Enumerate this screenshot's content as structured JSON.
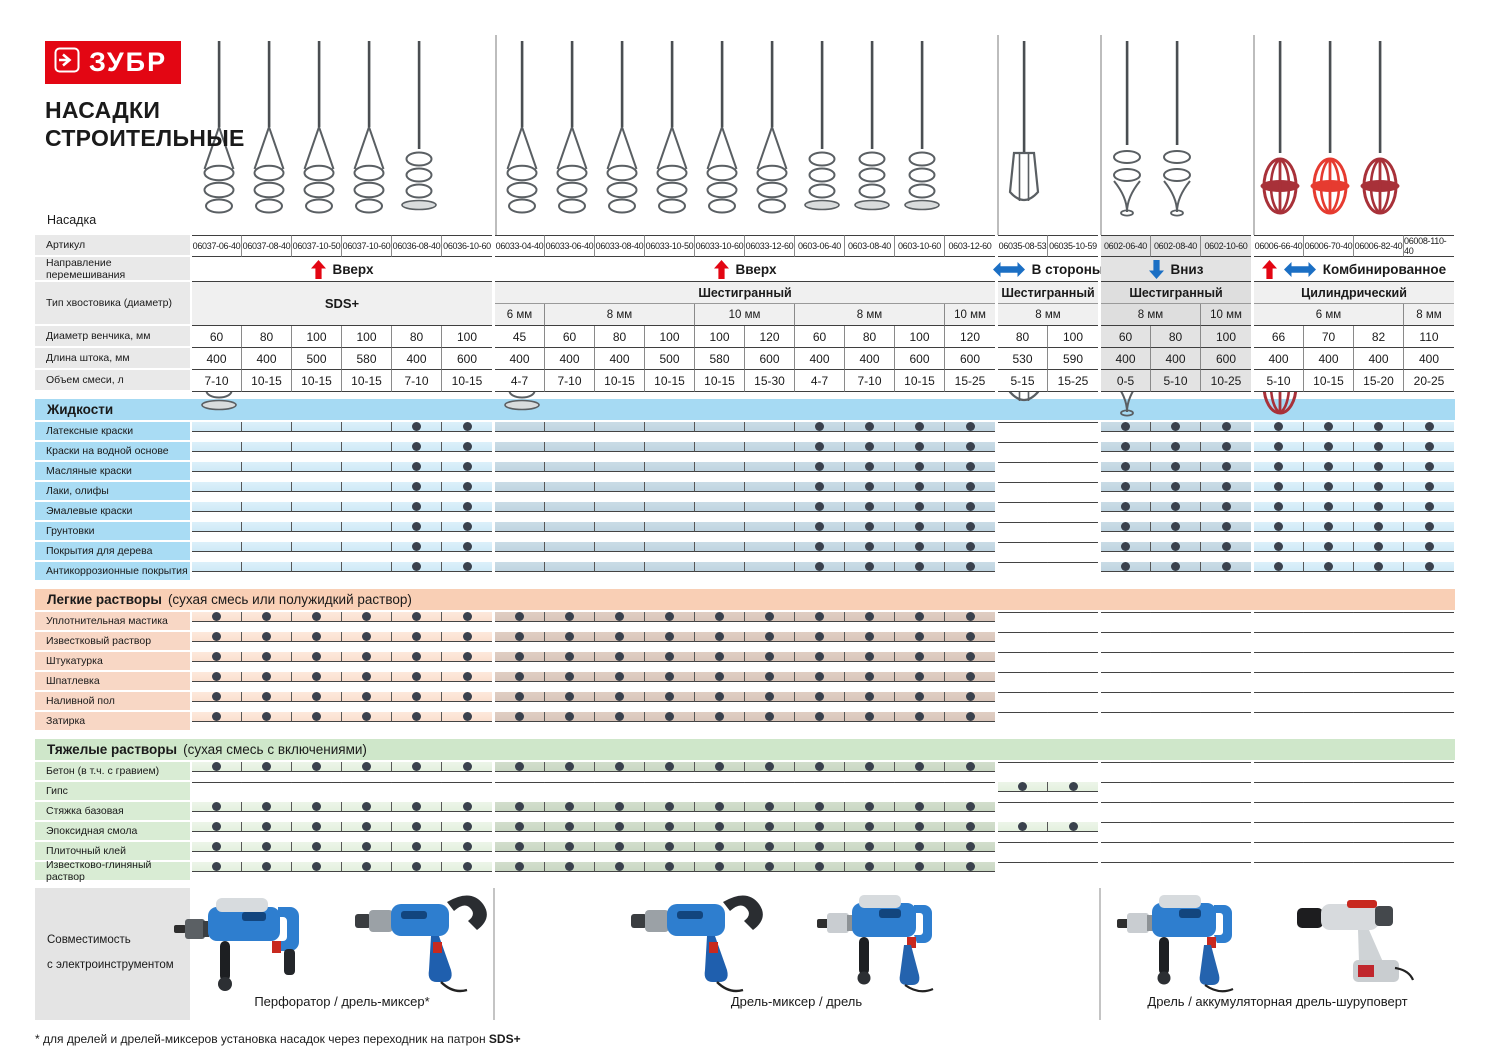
{
  "brand": {
    "logo": "ЗУБР",
    "title_line1": "НАСАДКИ",
    "title_line2": "СТРОИТЕЛЬНЫЕ"
  },
  "spec": {
    "nozzle_label": "Насадка",
    "article_label": "Артикул",
    "direction_label": "Направление перемешивания",
    "shank_label": "Тип хвостовика (диаметр)",
    "diameter_label": "Диаметр венчика, мм",
    "length_label": "Длина штока, мм",
    "volume_label": "Объем смеси, л"
  },
  "colors": {
    "accent_red": "#e30613",
    "accent_blue": "#1b6fc4",
    "dot": "#3a414d"
  },
  "groups": [
    {
      "name": "sds-up",
      "direction": "Вверх",
      "arrows": [
        "up-red"
      ],
      "shank": "SDS+",
      "merged_shank": true,
      "sizes": [
        {
          "label": "",
          "span": 6
        }
      ],
      "cols": 6,
      "tint": "none"
    },
    {
      "name": "hex-up",
      "direction": "Вверх",
      "arrows": [
        "up-red"
      ],
      "shank": "Шестигранный",
      "merged_shank": false,
      "sizes": [
        {
          "label": "6 мм",
          "span": 1
        },
        {
          "label": "8 мм",
          "span": 3
        },
        {
          "label": "10 мм",
          "span": 2
        },
        {
          "label": "8 мм",
          "span": 3
        },
        {
          "label": "10 мм",
          "span": 1
        }
      ],
      "cols": 10,
      "tint": "matrix"
    },
    {
      "name": "hex-sides",
      "direction": "В стороны",
      "arrows": [
        "lr-blue"
      ],
      "shank": "Шестигранный",
      "merged_shank": false,
      "sizes": [
        {
          "label": "8 мм",
          "span": 2
        }
      ],
      "cols": 2,
      "tint": "none"
    },
    {
      "name": "hex-down",
      "direction": "Вниз",
      "arrows": [
        "down-blue"
      ],
      "shank": "Шестигранный",
      "merged_shank": false,
      "sizes": [
        {
          "label": "8 мм",
          "span": 2
        },
        {
          "label": "10 мм",
          "span": 1
        }
      ],
      "cols": 3,
      "tint": "all"
    },
    {
      "name": "cyl-combo",
      "direction": "Комбинированное",
      "arrows": [
        "up-red",
        "lr-blue"
      ],
      "shank": "Цилиндрический",
      "merged_shank": false,
      "sizes": [
        {
          "label": "6 мм",
          "span": 3
        },
        {
          "label": "8 мм",
          "span": 1
        }
      ],
      "cols": 4,
      "tint": "none"
    }
  ],
  "columns": [
    {
      "article": "06037-06-40",
      "diameter": "60",
      "length": "400",
      "volume": "7-10",
      "icon": "cone-spiral-mixer"
    },
    {
      "article": "06037-08-40",
      "diameter": "80",
      "length": "400",
      "volume": "10-15",
      "icon": "cone-spiral-mixer"
    },
    {
      "article": "06037-10-50",
      "diameter": "100",
      "length": "500",
      "volume": "10-15",
      "icon": "cone-spiral-mixer"
    },
    {
      "article": "06037-10-60",
      "diameter": "100",
      "length": "580",
      "volume": "10-15",
      "icon": "cone-spiral-mixer"
    },
    {
      "article": "06036-08-40",
      "diameter": "80",
      "length": "400",
      "volume": "7-10",
      "icon": "helix-disc-mixer"
    },
    {
      "article": "06036-10-60",
      "diameter": "100",
      "length": "600",
      "volume": "10-15",
      "icon": "helix-disc-mixer"
    },
    {
      "article": "06033-04-40",
      "diameter": "45",
      "length": "400",
      "volume": "4-7",
      "icon": "cone-spiral-mixer"
    },
    {
      "article": "06033-06-40",
      "diameter": "60",
      "length": "400",
      "volume": "7-10",
      "icon": "cone-spiral-mixer"
    },
    {
      "article": "06033-08-40",
      "diameter": "80",
      "length": "400",
      "volume": "10-15",
      "icon": "cone-spiral-mixer"
    },
    {
      "article": "06033-10-50",
      "diameter": "100",
      "length": "500",
      "volume": "10-15",
      "icon": "cone-spiral-mixer"
    },
    {
      "article": "06033-10-60",
      "diameter": "100",
      "length": "580",
      "volume": "10-15",
      "icon": "cone-spiral-mixer"
    },
    {
      "article": "06033-12-60",
      "diameter": "120",
      "length": "600",
      "volume": "15-30",
      "icon": "cone-spiral-mixer"
    },
    {
      "article": "0603-06-40",
      "diameter": "60",
      "length": "400",
      "volume": "4-7",
      "icon": "helix-disc-mixer"
    },
    {
      "article": "0603-08-40",
      "diameter": "80",
      "length": "400",
      "volume": "7-10",
      "icon": "helix-disc-mixer"
    },
    {
      "article": "0603-10-60",
      "diameter": "100",
      "length": "600",
      "volume": "10-15",
      "icon": "helix-disc-mixer"
    },
    {
      "article": "0603-12-60",
      "diameter": "120",
      "length": "600",
      "volume": "15-25",
      "icon": "helix-disc-mixer"
    },
    {
      "article": "06035-08-53",
      "diameter": "80",
      "length": "530",
      "volume": "5-15",
      "icon": "frame-paddle-mixer"
    },
    {
      "article": "06035-10-59",
      "diameter": "100",
      "length": "590",
      "volume": "15-25",
      "icon": "frame-paddle-mixer"
    },
    {
      "article": "0602-06-40",
      "diameter": "60",
      "length": "400",
      "volume": "0-5",
      "icon": "helix-point-mixer"
    },
    {
      "article": "0602-08-40",
      "diameter": "80",
      "length": "400",
      "volume": "5-10",
      "icon": "helix-point-mixer"
    },
    {
      "article": "0602-10-60",
      "diameter": "100",
      "length": "600",
      "volume": "10-25",
      "icon": "helix-point-mixer"
    },
    {
      "article": "06006-66-40",
      "diameter": "66",
      "length": "400",
      "volume": "5-10",
      "icon": "red-cage-mixer"
    },
    {
      "article": "06006-70-40",
      "diameter": "70",
      "length": "400",
      "volume": "10-15",
      "icon": "red-cage-mixer-bright"
    },
    {
      "article": "06006-82-40",
      "diameter": "82",
      "length": "400",
      "volume": "15-20",
      "icon": "red-cage-mixer"
    },
    {
      "article": "06008-110-40",
      "diameter": "110",
      "length": "400",
      "volume": "20-25",
      "icon": "red-cage-mixer"
    }
  ],
  "sections": [
    {
      "title": "Жидкости",
      "subtitle": "",
      "scheme": "blue",
      "rows": [
        {
          "label": "Латексные краски",
          "dots": [
            0,
            0,
            0,
            0,
            1,
            1,
            0,
            0,
            0,
            0,
            0,
            0,
            1,
            1,
            1,
            1,
            0,
            0,
            1,
            1,
            1,
            1,
            1,
            1,
            1
          ]
        },
        {
          "label": "Краски на водной основе",
          "dots": [
            0,
            0,
            0,
            0,
            1,
            1,
            0,
            0,
            0,
            0,
            0,
            0,
            1,
            1,
            1,
            1,
            0,
            0,
            1,
            1,
            1,
            1,
            1,
            1,
            1
          ]
        },
        {
          "label": "Масляные краски",
          "dots": [
            0,
            0,
            0,
            0,
            1,
            1,
            0,
            0,
            0,
            0,
            0,
            0,
            1,
            1,
            1,
            1,
            0,
            0,
            1,
            1,
            1,
            1,
            1,
            1,
            1
          ]
        },
        {
          "label": "Лаки, олифы",
          "dots": [
            0,
            0,
            0,
            0,
            1,
            1,
            0,
            0,
            0,
            0,
            0,
            0,
            1,
            1,
            1,
            1,
            0,
            0,
            1,
            1,
            1,
            1,
            1,
            1,
            1
          ]
        },
        {
          "label": "Эмалевые краски",
          "dots": [
            0,
            0,
            0,
            0,
            1,
            1,
            0,
            0,
            0,
            0,
            0,
            0,
            1,
            1,
            1,
            1,
            0,
            0,
            1,
            1,
            1,
            1,
            1,
            1,
            1
          ]
        },
        {
          "label": "Грунтовки",
          "dots": [
            0,
            0,
            0,
            0,
            1,
            1,
            0,
            0,
            0,
            0,
            0,
            0,
            1,
            1,
            1,
            1,
            0,
            0,
            1,
            1,
            1,
            1,
            1,
            1,
            1
          ]
        },
        {
          "label": "Покрытия для дерева",
          "dots": [
            0,
            0,
            0,
            0,
            1,
            1,
            0,
            0,
            0,
            0,
            0,
            0,
            1,
            1,
            1,
            1,
            0,
            0,
            1,
            1,
            1,
            1,
            1,
            1,
            1
          ]
        },
        {
          "label": "Антикоррозионные покрытия",
          "dots": [
            0,
            0,
            0,
            0,
            1,
            1,
            0,
            0,
            0,
            0,
            0,
            0,
            1,
            1,
            1,
            1,
            0,
            0,
            1,
            1,
            1,
            1,
            1,
            1,
            1
          ]
        }
      ]
    },
    {
      "title": "Легкие растворы",
      "subtitle": "(сухая смесь или полужидкий раствор)",
      "scheme": "salmon",
      "rows": [
        {
          "label": "Уплотнительная мастика",
          "dots": [
            1,
            1,
            1,
            1,
            1,
            1,
            1,
            1,
            1,
            1,
            1,
            1,
            1,
            1,
            1,
            1,
            0,
            0,
            0,
            0,
            0,
            0,
            0,
            0,
            0
          ]
        },
        {
          "label": "Известковый раствор",
          "dots": [
            1,
            1,
            1,
            1,
            1,
            1,
            1,
            1,
            1,
            1,
            1,
            1,
            1,
            1,
            1,
            1,
            0,
            0,
            0,
            0,
            0,
            0,
            0,
            0,
            0
          ]
        },
        {
          "label": "Штукатурка",
          "dots": [
            1,
            1,
            1,
            1,
            1,
            1,
            1,
            1,
            1,
            1,
            1,
            1,
            1,
            1,
            1,
            1,
            0,
            0,
            0,
            0,
            0,
            0,
            0,
            0,
            0
          ]
        },
        {
          "label": "Шпатлевка",
          "dots": [
            1,
            1,
            1,
            1,
            1,
            1,
            1,
            1,
            1,
            1,
            1,
            1,
            1,
            1,
            1,
            1,
            0,
            0,
            0,
            0,
            0,
            0,
            0,
            0,
            0
          ]
        },
        {
          "label": "Наливной пол",
          "dots": [
            1,
            1,
            1,
            1,
            1,
            1,
            1,
            1,
            1,
            1,
            1,
            1,
            1,
            1,
            1,
            1,
            0,
            0,
            0,
            0,
            0,
            0,
            0,
            0,
            0
          ]
        },
        {
          "label": "Затирка",
          "dots": [
            1,
            1,
            1,
            1,
            1,
            1,
            1,
            1,
            1,
            1,
            1,
            1,
            1,
            1,
            1,
            1,
            0,
            0,
            0,
            0,
            0,
            0,
            0,
            0,
            0
          ]
        }
      ]
    },
    {
      "title": "Тяжелые растворы",
      "subtitle": "(сухая смесь с включениями)",
      "scheme": "green",
      "rows": [
        {
          "label": "Бетон (в т.ч. с гравием)",
          "dots": [
            1,
            1,
            1,
            1,
            1,
            1,
            1,
            1,
            1,
            1,
            1,
            1,
            1,
            1,
            1,
            1,
            0,
            0,
            0,
            0,
            0,
            0,
            0,
            0,
            0
          ]
        },
        {
          "label": "Гипс",
          "dots": [
            0,
            0,
            0,
            0,
            0,
            0,
            0,
            0,
            0,
            0,
            0,
            0,
            0,
            0,
            0,
            0,
            1,
            1,
            0,
            0,
            0,
            0,
            0,
            0,
            0
          ]
        },
        {
          "label": "Стяжка базовая",
          "dots": [
            1,
            1,
            1,
            1,
            1,
            1,
            1,
            1,
            1,
            1,
            1,
            1,
            1,
            1,
            1,
            1,
            0,
            0,
            0,
            0,
            0,
            0,
            0,
            0,
            0
          ]
        },
        {
          "label": "Эпоксидная смола",
          "dots": [
            1,
            1,
            1,
            1,
            1,
            1,
            1,
            1,
            1,
            1,
            1,
            1,
            1,
            1,
            1,
            1,
            1,
            1,
            0,
            0,
            0,
            0,
            0,
            0,
            0
          ]
        },
        {
          "label": "Плиточный клей",
          "dots": [
            1,
            1,
            1,
            1,
            1,
            1,
            1,
            1,
            1,
            1,
            1,
            1,
            1,
            1,
            1,
            1,
            0,
            0,
            0,
            0,
            0,
            0,
            0,
            0,
            0
          ]
        },
        {
          "label": "Известково-глиняный раствор",
          "dots": [
            1,
            1,
            1,
            1,
            1,
            1,
            1,
            1,
            1,
            1,
            1,
            1,
            1,
            1,
            1,
            1,
            0,
            0,
            0,
            0,
            0,
            0,
            0,
            0,
            0
          ]
        }
      ]
    }
  ],
  "footer": {
    "label_line1": "Совместимость",
    "label_line2": "с электроинструментом",
    "zones": [
      {
        "caption": "Перфоратор / дрель-миксер*",
        "tools": [
          "perforator",
          "mixer-drill"
        ],
        "span_groups": [
          0
        ]
      },
      {
        "caption": "Дрель-миксер / дрель",
        "tools": [
          "mixer-drill",
          "drill"
        ],
        "span_groups": [
          1,
          2
        ]
      },
      {
        "caption": "Дрель / аккумуляторная дрель-шуруповерт",
        "tools": [
          "drill",
          "cordless-driver"
        ],
        "span_groups": [
          3,
          4
        ]
      }
    ],
    "note": "* для дрелей и дрелей-миксеров установка насадок через переходник на патрон ",
    "note_bold": "SDS+"
  }
}
